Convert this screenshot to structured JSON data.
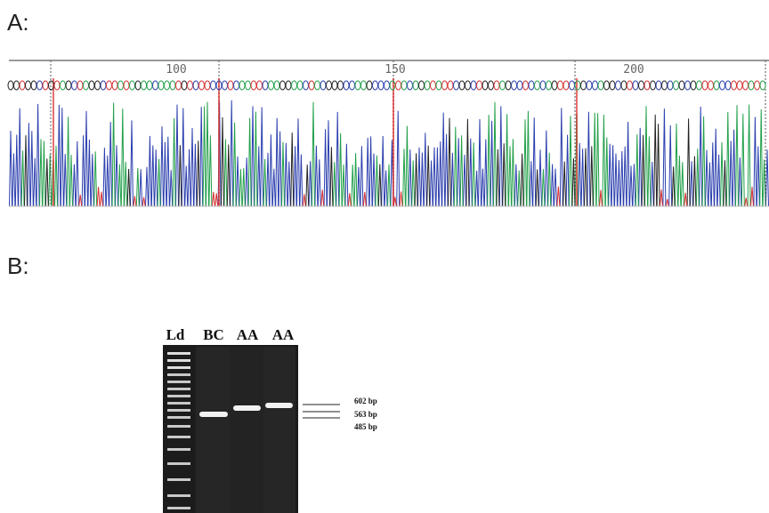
{
  "panel_a": {
    "label": "A:",
    "ruler_ticks": [
      "100",
      "150",
      "200"
    ]
  },
  "panel_b": {
    "label": "B:",
    "lanes": [
      "Ld",
      "BC",
      "AA",
      "AA"
    ],
    "band_sizes": [
      "602 bp",
      "563 bp",
      "485 bp"
    ]
  }
}
